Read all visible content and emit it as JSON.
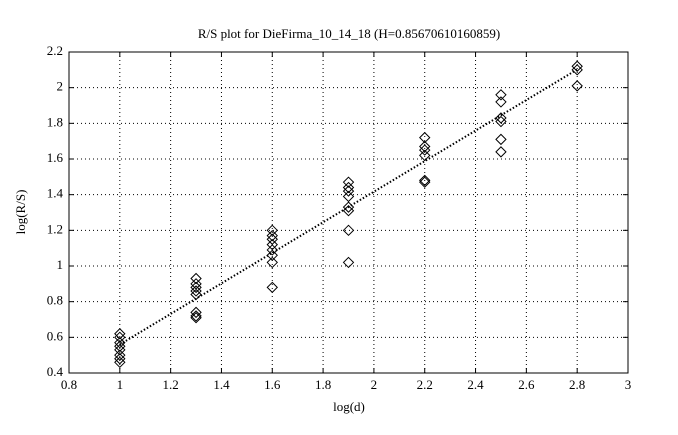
{
  "chart_data": {
    "type": "scatter",
    "title": "R/S plot for DieFirma_10_14_18 (H=0.85670610160859)",
    "x_label": "log(d)",
    "y_label": "log(R/S)",
    "series": [
      {
        "color": "#000000",
        "x": [
          1,
          1,
          1,
          1,
          1,
          1,
          1,
          1,
          1.3,
          1.3,
          1.3,
          1.3,
          1.3,
          1.3,
          1.3,
          1.3,
          1.6,
          1.6,
          1.6,
          1.6,
          1.6,
          1.6,
          1.6,
          1.6,
          1.9,
          1.9,
          1.9,
          1.9,
          1.9,
          1.9,
          1.9,
          1.9,
          2.2,
          2.2,
          2.2,
          2.2,
          2.2,
          2.2,
          2.5,
          2.5,
          2.5,
          2.5,
          2.5,
          2.5,
          2.8,
          2.8,
          2.8
        ],
        "values": [
          0.62,
          0.6,
          0.57,
          0.55,
          0.53,
          0.5,
          0.48,
          0.46,
          0.93,
          0.9,
          0.88,
          0.86,
          0.84,
          0.74,
          0.72,
          0.71,
          1.2,
          1.17,
          1.15,
          1.12,
          1.09,
          1.06,
          1.02,
          0.88,
          1.47,
          1.44,
          1.42,
          1.39,
          1.33,
          1.31,
          1.2,
          1.02,
          1.72,
          1.67,
          1.65,
          1.62,
          1.48,
          1.47,
          1.96,
          1.92,
          1.83,
          1.81,
          1.71,
          1.64,
          2.12,
          2.1,
          2.01
        ]
      },
      {
        "type": "line",
        "color": "#000000",
        "x": [
          1,
          2.8
        ],
        "values": [
          0.56,
          2.102
        ]
      }
    ],
    "xlim": [
      0.8,
      3
    ],
    "xticks": [
      0.8,
      1,
      1.2,
      1.4,
      1.6,
      1.8,
      2,
      2.2,
      2.4,
      2.6,
      2.8,
      3
    ],
    "ylim": [
      0.4,
      2.2
    ],
    "yticks": [
      0.4,
      0.6,
      0.8,
      1,
      1.2,
      1.4,
      1.6,
      1.8,
      2,
      2.2
    ],
    "grid": true
  }
}
